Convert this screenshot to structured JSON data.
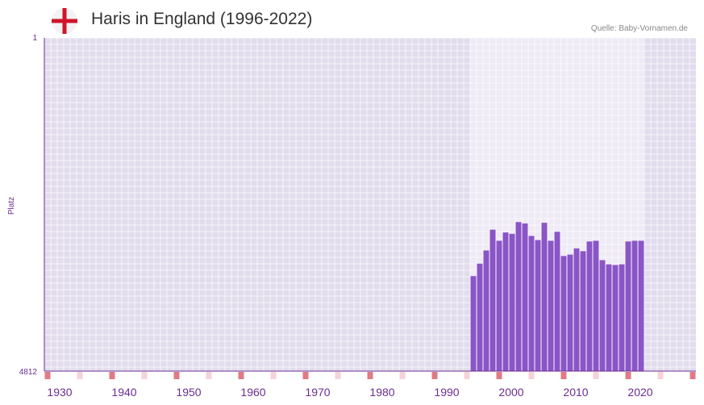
{
  "header": {
    "title": "Haris in England (1996-2022)",
    "source": "Quelle: Baby-Vornamen.de",
    "flag_icon": "england-flag-icon"
  },
  "colors": {
    "bar": "#8a55c6",
    "background_band": "#e2dded",
    "highlight_band": "#eeeaf6",
    "axis": "#6b2d8f",
    "tick_label": "#6b2d8f",
    "decade_marker": "#e07b86",
    "half_decade_marker": "#f6d3d9",
    "flag_red": "#cf142b"
  },
  "chart_data": {
    "type": "bar",
    "title": "Haris in England (1996-2022)",
    "xlabel": "",
    "ylabel": "Platz",
    "y_axis_inverted": true,
    "ylim": [
      1,
      4812
    ],
    "y_tick_labels": [
      "1",
      "4812"
    ],
    "xlim": [
      1927.5,
      2028.5
    ],
    "x_ticks": [
      1930,
      1940,
      1950,
      1960,
      1970,
      1980,
      1990,
      2000,
      2010,
      2020
    ],
    "x_tick_labels": [
      "1930",
      "1940",
      "1950",
      "1960",
      "1970",
      "1980",
      "1990",
      "2000",
      "2010",
      "2020"
    ],
    "highlight_range": [
      1993.5,
      2020.5
    ],
    "decade_markers": [
      1928,
      1938,
      1948,
      1958,
      1968,
      1978,
      1988,
      1998,
      2008,
      2018,
      2028
    ],
    "half_decade_markers": [
      1933,
      1943,
      1953,
      1963,
      1973,
      1983,
      1993,
      2003,
      2013,
      2023
    ],
    "categories": [
      1994,
      1995,
      1996,
      1997,
      1998,
      1999,
      2000,
      2001,
      2002,
      2003,
      2004,
      2005,
      2006,
      2007,
      2008,
      2009,
      2010,
      2011,
      2012,
      2013,
      2014,
      2015,
      2016,
      2017,
      2018,
      2019,
      2020
    ],
    "series": [
      {
        "name": "Platz",
        "values": [
          3440,
          3260,
          3070,
          2770,
          2930,
          2810,
          2830,
          2660,
          2680,
          2860,
          2920,
          2670,
          2930,
          2800,
          3150,
          3130,
          3040,
          3080,
          2940,
          2930,
          3210,
          3270,
          3280,
          3270,
          2940,
          2930,
          2930
        ]
      }
    ]
  }
}
